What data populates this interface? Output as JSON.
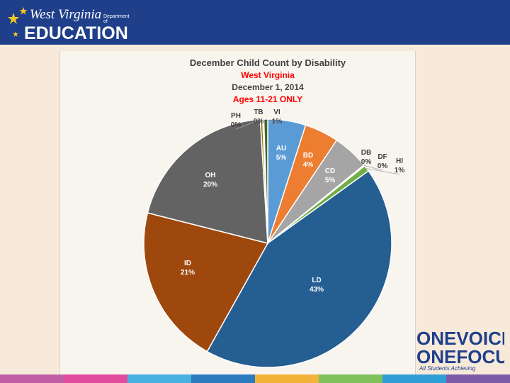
{
  "header": {
    "logo_line1": "West Virginia",
    "logo_dept": "Department of",
    "logo_line2": "EDUCATION"
  },
  "branding": {
    "one_voice": "ONEVOICE",
    "one_focus": "ONEFOCUS",
    "tagline": "All Students Achieving"
  },
  "chart_data": {
    "type": "pie",
    "title": "December Child Count by Disability",
    "subtitle_lines": [
      "West Virginia",
      "December 1, 2014",
      "Ages 11-21 ONLY"
    ],
    "slices": [
      {
        "label": "AU",
        "pct_label": "5%",
        "value": 4.9,
        "color": "#5b9bd5"
      },
      {
        "label": "BD",
        "pct_label": "4%",
        "value": 4.4,
        "color": "#ed7d31"
      },
      {
        "label": "CD",
        "pct_label": "5%",
        "value": 4.7,
        "color": "#a5a5a5"
      },
      {
        "label": "DB",
        "pct_label": "0%",
        "value": 0.05,
        "color": "#ffc000"
      },
      {
        "label": "DF",
        "pct_label": "0%",
        "value": 0.1,
        "color": "#4472c4"
      },
      {
        "label": "HI",
        "pct_label": "1%",
        "value": 0.8,
        "color": "#70ad47"
      },
      {
        "label": "LD",
        "pct_label": "43%",
        "value": 42.6,
        "color": "#255e91"
      },
      {
        "label": "ID",
        "pct_label": "21%",
        "value": 20.6,
        "color": "#9e480e"
      },
      {
        "label": "OH",
        "pct_label": "20%",
        "value": 19.9,
        "color": "#636363"
      },
      {
        "label": "PH",
        "pct_label": "0%",
        "value": 0.3,
        "color": "#997300"
      },
      {
        "label": "TB",
        "pct_label": "0%",
        "value": 0.15,
        "color": "#264478"
      },
      {
        "label": "VI",
        "pct_label": "1%",
        "value": 0.5,
        "color": "#43682b"
      }
    ],
    "title_color": "#404040",
    "accent_color": "#ff0000"
  },
  "colors": {
    "header_bg": "#1f3f8a",
    "stripe": [
      "#c05fa7",
      "#e24b9b",
      "#48b0e0",
      "#2b7bc1",
      "#f3b23a",
      "#7fc15a",
      "#2f9dd8",
      "#7d5aa8"
    ]
  }
}
